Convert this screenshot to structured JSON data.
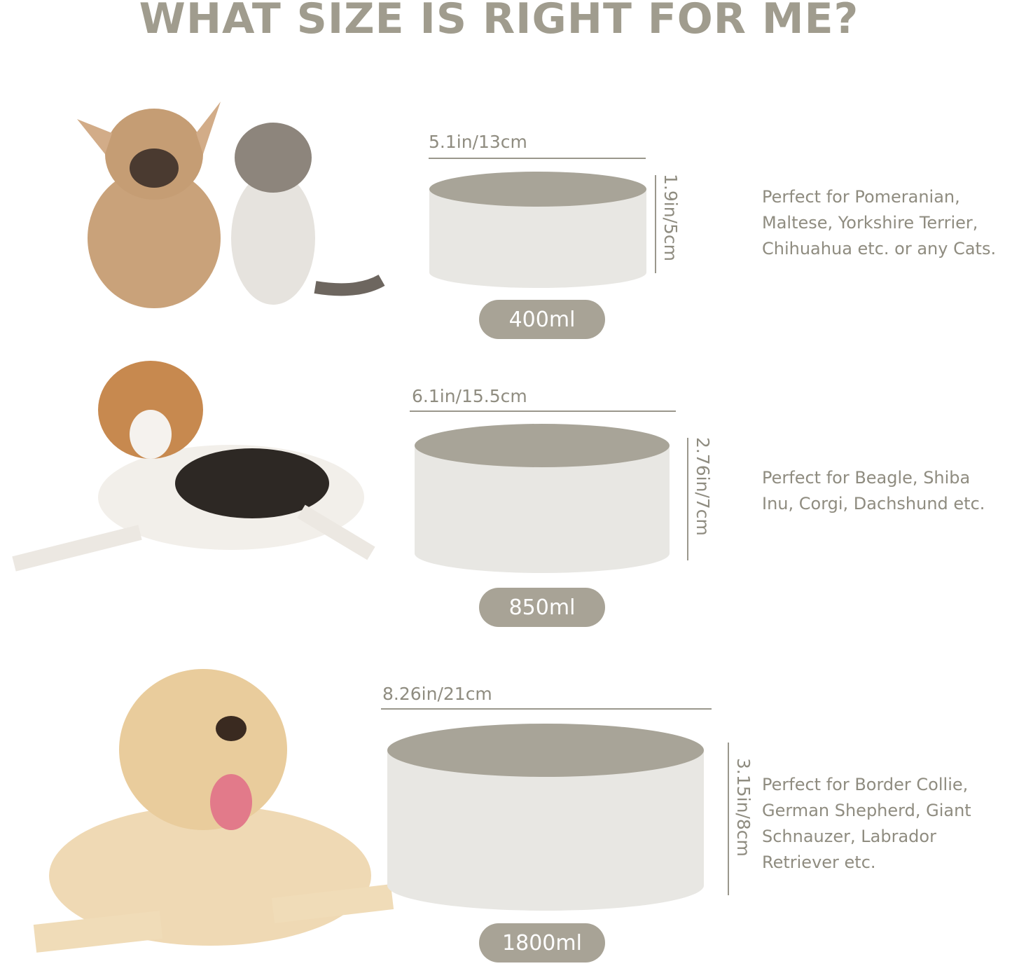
{
  "title": "WHAT SIZE IS RIGHT FOR ME?",
  "colors": {
    "title": "#a09c8e",
    "bowl_inner": "#a8a498",
    "bowl_body": "#e8e7e3",
    "pill": "#a8a396",
    "text": "#8f8c80"
  },
  "sizes": [
    {
      "pets": "french-bulldog-and-kitten",
      "width_label": "5.1in/13cm",
      "height_label": "1.9in/5cm",
      "capacity": "400ml",
      "description": [
        "Perfect for Pomeranian,",
        "Maltese, Yorkshire Terrier,",
        "Chihuahua etc. or any Cats."
      ]
    },
    {
      "pets": "beagle",
      "width_label": "6.1in/15.5cm",
      "height_label": "2.76in/7cm",
      "capacity": "850ml",
      "description": [
        "Perfect for Beagle, Shiba",
        "Inu, Corgi, Dachshund etc."
      ]
    },
    {
      "pets": "labrador",
      "width_label": "8.26in/21cm",
      "height_label": "3.15in/8cm",
      "capacity": "1800ml",
      "description": [
        "Perfect for Border Collie,",
        "German Shepherd, Giant",
        "Schnauzer, Labrador",
        "Retriever etc."
      ]
    }
  ]
}
